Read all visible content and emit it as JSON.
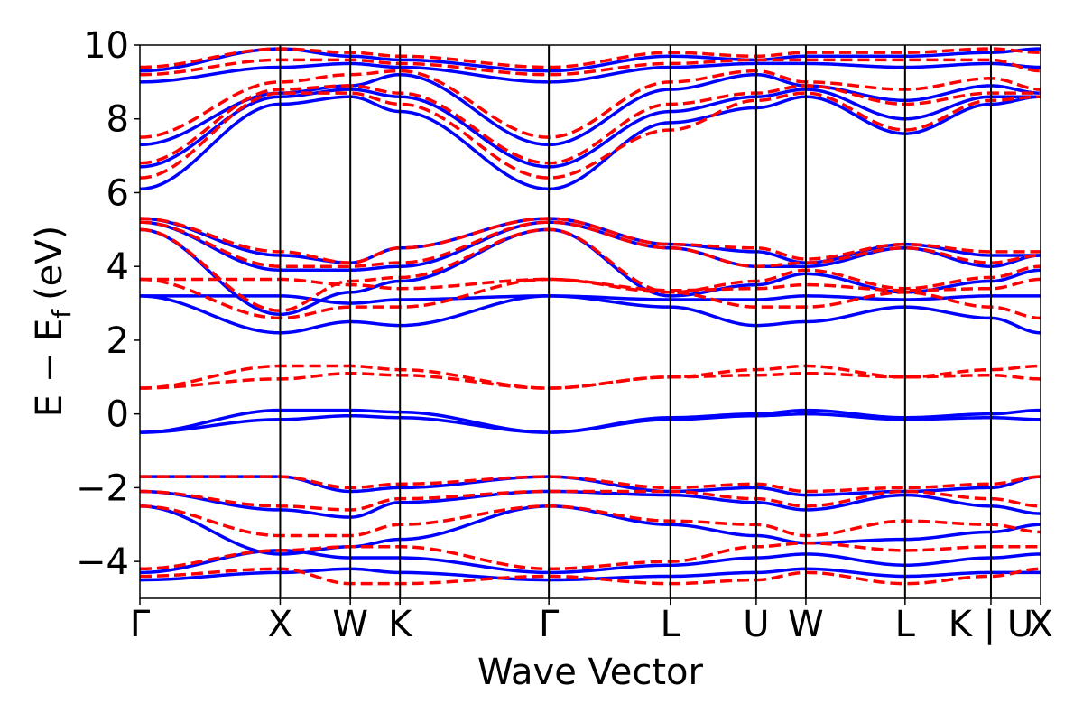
{
  "chart_data": {
    "type": "line",
    "title": "",
    "xlabel": "Wave Vector",
    "ylabel": "E − E",
    "ylabel_subscript": "f",
    "ylabel_unit": "(eV)",
    "ylim": [
      -5,
      10
    ],
    "yticks": [
      -4,
      -2,
      0,
      2,
      4,
      6,
      8,
      10
    ],
    "ytick_labels": [
      "−4",
      "−2",
      "0",
      "2",
      "4",
      "6",
      "8",
      "10"
    ],
    "k_path_ticks": [
      {
        "label": "Γ",
        "k": 0.0
      },
      {
        "label": "X",
        "k": 1.0
      },
      {
        "label": "W",
        "k": 1.5
      },
      {
        "label": "K",
        "k": 1.854
      },
      {
        "label": "Γ",
        "k": 2.915
      },
      {
        "label": "L",
        "k": 3.781
      },
      {
        "label": "U",
        "k": 4.393
      },
      {
        "label": "W",
        "k": 4.747
      },
      {
        "label": "L",
        "k": 5.454
      },
      {
        "label": "K | U",
        "k": 6.066
      },
      {
        "label": "X",
        "k": 6.42
      }
    ],
    "kmax": 6.42,
    "grid": false,
    "series": [
      {
        "line_color": "#0000ff",
        "line_style": "solid",
        "bands": [
          {
            "k": [
              0,
              1,
              1.5,
              1.854,
              2.915,
              3.781,
              4.393,
              4.747,
              5.454,
              6.066,
              6.42
            ],
            "E": [
              -4.5,
              -4.3,
              -4.2,
              -4.3,
              -4.5,
              -4.4,
              -4.3,
              -4.2,
              -4.4,
              -4.3,
              -4.3
            ]
          },
          {
            "k": [
              0,
              1,
              1.5,
              1.854,
              2.915,
              3.781,
              4.393,
              4.747,
              5.454,
              6.066,
              6.42
            ],
            "E": [
              -4.3,
              -3.7,
              -3.9,
              -3.9,
              -4.3,
              -4.1,
              -3.9,
              -3.8,
              -4.1,
              -3.9,
              -3.8
            ]
          },
          {
            "k": [
              0,
              1,
              1.5,
              1.854,
              2.915,
              3.781,
              4.393,
              4.747,
              5.454,
              6.066,
              6.42
            ],
            "E": [
              -2.5,
              -3.8,
              -3.6,
              -3.4,
              -2.5,
              -3.0,
              -3.3,
              -3.5,
              -3.4,
              -3.2,
              -3.0
            ]
          },
          {
            "k": [
              0,
              1,
              1.5,
              1.854,
              2.915,
              3.781,
              4.393,
              4.747,
              5.454,
              6.066,
              6.42
            ],
            "E": [
              -2.1,
              -2.6,
              -2.8,
              -2.4,
              -2.1,
              -2.2,
              -2.4,
              -2.6,
              -2.2,
              -2.5,
              -2.7
            ]
          },
          {
            "k": [
              0,
              1,
              1.5,
              1.854,
              2.915,
              3.781,
              4.393,
              4.747,
              5.454,
              6.066,
              6.42
            ],
            "E": [
              -1.7,
              -1.7,
              -2.1,
              -2.0,
              -1.7,
              -2.1,
              -2.0,
              -2.2,
              -2.1,
              -2.0,
              -1.7
            ]
          },
          {
            "k": [
              0,
              1,
              1.5,
              1.854,
              2.915,
              3.781,
              4.393,
              4.747,
              5.454,
              6.066,
              6.42
            ],
            "E": [
              -0.5,
              0.1,
              0.1,
              0.05,
              -0.5,
              -0.1,
              0.0,
              0.1,
              -0.1,
              0.0,
              0.1
            ]
          },
          {
            "k": [
              0,
              1,
              1.5,
              1.854,
              2.915,
              3.781,
              4.393,
              4.747,
              5.454,
              6.066,
              6.42
            ],
            "E": [
              -0.5,
              -0.15,
              -0.05,
              -0.1,
              -0.5,
              -0.15,
              -0.05,
              0.0,
              -0.15,
              -0.1,
              -0.15
            ]
          },
          {
            "k": [
              0,
              1,
              1.5,
              1.854,
              2.915,
              3.781,
              4.393,
              4.747,
              5.454,
              6.066,
              6.42
            ],
            "E": [
              3.2,
              2.2,
              2.5,
              2.4,
              3.2,
              2.9,
              2.4,
              2.5,
              2.9,
              2.6,
              2.2
            ]
          },
          {
            "k": [
              0,
              1,
              1.5,
              1.854,
              2.915,
              3.781,
              4.393,
              4.747,
              5.454,
              6.066,
              6.42
            ],
            "E": [
              3.2,
              3.2,
              3.0,
              3.1,
              3.2,
              3.1,
              3.1,
              3.2,
              3.1,
              3.2,
              3.2
            ]
          },
          {
            "k": [
              0,
              1,
              1.5,
              1.854,
              2.915,
              3.781,
              4.393,
              4.747,
              5.454,
              6.066,
              6.42
            ],
            "E": [
              5.0,
              2.7,
              3.3,
              3.6,
              5.0,
              3.2,
              3.5,
              3.8,
              3.3,
              3.6,
              3.9
            ]
          },
          {
            "k": [
              0,
              1,
              1.5,
              1.854,
              2.915,
              3.781,
              4.393,
              4.747,
              5.454,
              6.066,
              6.42
            ],
            "E": [
              5.2,
              3.9,
              3.9,
              4.0,
              5.2,
              4.5,
              4.0,
              4.0,
              4.5,
              4.0,
              4.3
            ]
          },
          {
            "k": [
              0,
              1,
              1.5,
              1.854,
              2.915,
              3.781,
              4.393,
              4.747,
              5.454,
              6.066,
              6.42
            ],
            "E": [
              5.3,
              4.3,
              4.1,
              4.5,
              5.3,
              4.6,
              4.4,
              4.1,
              4.6,
              4.3,
              4.3
            ]
          },
          {
            "k": [
              0,
              1,
              1.5,
              1.854,
              2.915,
              3.781,
              4.393,
              4.747,
              5.454,
              6.066,
              6.42
            ],
            "E": [
              6.1,
              8.4,
              8.6,
              8.2,
              6.1,
              7.9,
              8.3,
              8.6,
              7.6,
              8.4,
              8.6
            ]
          },
          {
            "k": [
              0,
              1,
              1.5,
              1.854,
              2.915,
              3.781,
              4.393,
              4.747,
              5.454,
              6.066,
              6.42
            ],
            "E": [
              6.7,
              8.6,
              8.8,
              8.6,
              6.7,
              8.2,
              8.6,
              8.8,
              8.0,
              8.6,
              8.6
            ]
          },
          {
            "k": [
              0,
              1,
              1.5,
              1.854,
              2.915,
              3.781,
              4.393,
              4.747,
              5.454,
              6.066,
              6.42
            ],
            "E": [
              7.3,
              8.7,
              8.9,
              9.2,
              7.3,
              8.8,
              9.2,
              8.9,
              8.5,
              8.9,
              8.7
            ]
          },
          {
            "k": [
              0,
              1,
              1.5,
              1.854,
              2.915,
              3.781,
              4.393,
              4.747,
              5.454,
              6.066,
              6.42
            ],
            "E": [
              9.0,
              9.4,
              9.5,
              9.4,
              9.0,
              9.4,
              9.5,
              9.5,
              9.4,
              9.5,
              9.4
            ]
          },
          {
            "k": [
              0,
              1,
              1.5,
              1.854,
              2.915,
              3.781,
              4.393,
              4.747,
              5.454,
              6.066,
              6.42
            ],
            "E": [
              9.3,
              9.9,
              9.7,
              9.6,
              9.3,
              9.7,
              9.6,
              9.7,
              9.7,
              9.8,
              9.9
            ]
          }
        ]
      },
      {
        "line_color": "#ff0000",
        "line_style": "dashed",
        "bands": [
          {
            "k": [
              0,
              1,
              1.5,
              1.854,
              2.915,
              3.781,
              4.393,
              4.747,
              5.454,
              6.066,
              6.42
            ],
            "E": [
              -4.4,
              -4.2,
              -4.6,
              -4.6,
              -4.4,
              -4.6,
              -4.5,
              -4.3,
              -4.6,
              -4.4,
              -4.2
            ]
          },
          {
            "k": [
              0,
              1,
              1.5,
              1.854,
              2.915,
              3.781,
              4.393,
              4.747,
              5.454,
              6.066,
              6.42
            ],
            "E": [
              -4.2,
              -3.7,
              -3.6,
              -3.6,
              -4.2,
              -4.0,
              -3.6,
              -3.5,
              -3.7,
              -3.6,
              -3.6
            ]
          },
          {
            "k": [
              0,
              1,
              1.5,
              1.854,
              2.915,
              3.781,
              4.393,
              4.747,
              5.454,
              6.066,
              6.42
            ],
            "E": [
              -2.5,
              -3.3,
              -3.3,
              -3.0,
              -2.5,
              -2.9,
              -3.0,
              -3.3,
              -2.9,
              -3.0,
              -3.2
            ]
          },
          {
            "k": [
              0,
              1,
              1.5,
              1.854,
              2.915,
              3.781,
              4.393,
              4.747,
              5.454,
              6.066,
              6.42
            ],
            "E": [
              -2.1,
              -2.5,
              -2.6,
              -2.3,
              -2.1,
              -2.1,
              -2.3,
              -2.5,
              -2.1,
              -2.3,
              -2.5
            ]
          },
          {
            "k": [
              0,
              1,
              1.5,
              1.854,
              2.915,
              3.781,
              4.393,
              4.747,
              5.454,
              6.066,
              6.42
            ],
            "E": [
              -1.7,
              -1.7,
              -2.0,
              -1.9,
              -1.7,
              -2.0,
              -1.9,
              -2.1,
              -2.0,
              -1.9,
              -1.7
            ]
          },
          {
            "k": [
              0,
              1,
              1.5,
              1.854,
              2.915,
              3.781,
              4.393,
              4.747,
              5.454,
              6.066,
              6.42
            ],
            "E": [
              0.7,
              1.3,
              1.3,
              1.2,
              0.7,
              1.0,
              1.2,
              1.3,
              1.0,
              1.2,
              1.3
            ]
          },
          {
            "k": [
              0,
              1,
              1.5,
              1.854,
              2.915,
              3.781,
              4.393,
              4.747,
              5.454,
              6.066,
              6.42
            ],
            "E": [
              0.7,
              0.95,
              1.1,
              1.05,
              0.7,
              1.0,
              1.05,
              1.1,
              1.0,
              1.05,
              0.95
            ]
          },
          {
            "k": [
              0,
              1,
              1.5,
              1.854,
              2.915,
              3.781,
              4.393,
              4.747,
              5.454,
              6.066,
              6.42
            ],
            "E": [
              3.65,
              2.6,
              2.9,
              2.9,
              3.65,
              3.3,
              2.9,
              2.9,
              3.3,
              2.9,
              2.6
            ]
          },
          {
            "k": [
              0,
              1,
              1.5,
              1.854,
              2.915,
              3.781,
              4.393,
              4.747,
              5.454,
              6.066,
              6.42
            ],
            "E": [
              3.65,
              3.65,
              3.5,
              3.4,
              3.65,
              3.35,
              3.4,
              3.5,
              3.35,
              3.4,
              3.65
            ]
          },
          {
            "k": [
              0,
              1,
              1.5,
              1.854,
              2.915,
              3.781,
              4.393,
              4.747,
              5.454,
              6.066,
              6.42
            ],
            "E": [
              5.0,
              2.8,
              3.6,
              3.7,
              5.0,
              3.3,
              3.6,
              3.9,
              3.4,
              3.7,
              4.0
            ]
          },
          {
            "k": [
              0,
              1,
              1.5,
              1.854,
              2.915,
              3.781,
              4.393,
              4.747,
              5.454,
              6.066,
              6.42
            ],
            "E": [
              5.2,
              4.0,
              4.0,
              4.1,
              5.2,
              4.5,
              4.0,
              4.1,
              4.5,
              4.1,
              4.3
            ]
          },
          {
            "k": [
              0,
              1,
              1.5,
              1.854,
              2.915,
              3.781,
              4.393,
              4.747,
              5.454,
              6.066,
              6.42
            ],
            "E": [
              5.3,
              4.4,
              4.1,
              4.5,
              5.3,
              4.6,
              4.5,
              4.2,
              4.6,
              4.4,
              4.4
            ]
          },
          {
            "k": [
              0,
              1,
              1.5,
              1.854,
              2.915,
              3.781,
              4.393,
              4.747,
              5.454,
              6.066,
              6.42
            ],
            "E": [
              6.4,
              8.7,
              8.7,
              8.4,
              6.4,
              7.7,
              8.5,
              8.7,
              7.7,
              8.5,
              8.6
            ]
          },
          {
            "k": [
              0,
              1,
              1.5,
              1.854,
              2.915,
              3.781,
              4.393,
              4.747,
              5.454,
              6.066,
              6.42
            ],
            "E": [
              6.8,
              8.8,
              8.9,
              8.7,
              6.8,
              8.4,
              8.7,
              8.9,
              8.4,
              8.7,
              8.7
            ]
          },
          {
            "k": [
              0,
              1,
              1.5,
              1.854,
              2.915,
              3.781,
              4.393,
              4.747,
              5.454,
              6.066,
              6.42
            ],
            "E": [
              7.5,
              9.0,
              9.2,
              9.3,
              7.5,
              9.0,
              9.3,
              9.0,
              8.8,
              9.1,
              8.8
            ]
          },
          {
            "k": [
              0,
              1,
              1.5,
              1.854,
              2.915,
              3.781,
              4.393,
              4.747,
              5.454,
              6.066,
              6.42
            ],
            "E": [
              9.2,
              9.6,
              9.6,
              9.5,
              9.2,
              9.5,
              9.6,
              9.6,
              9.6,
              9.6,
              9.3
            ]
          },
          {
            "k": [
              0,
              1,
              1.5,
              1.854,
              2.915,
              3.781,
              4.393,
              4.747,
              5.454,
              6.066,
              6.42
            ],
            "E": [
              9.4,
              9.9,
              9.8,
              9.7,
              9.4,
              9.8,
              9.7,
              9.8,
              9.8,
              9.9,
              9.8
            ]
          }
        ]
      }
    ]
  }
}
